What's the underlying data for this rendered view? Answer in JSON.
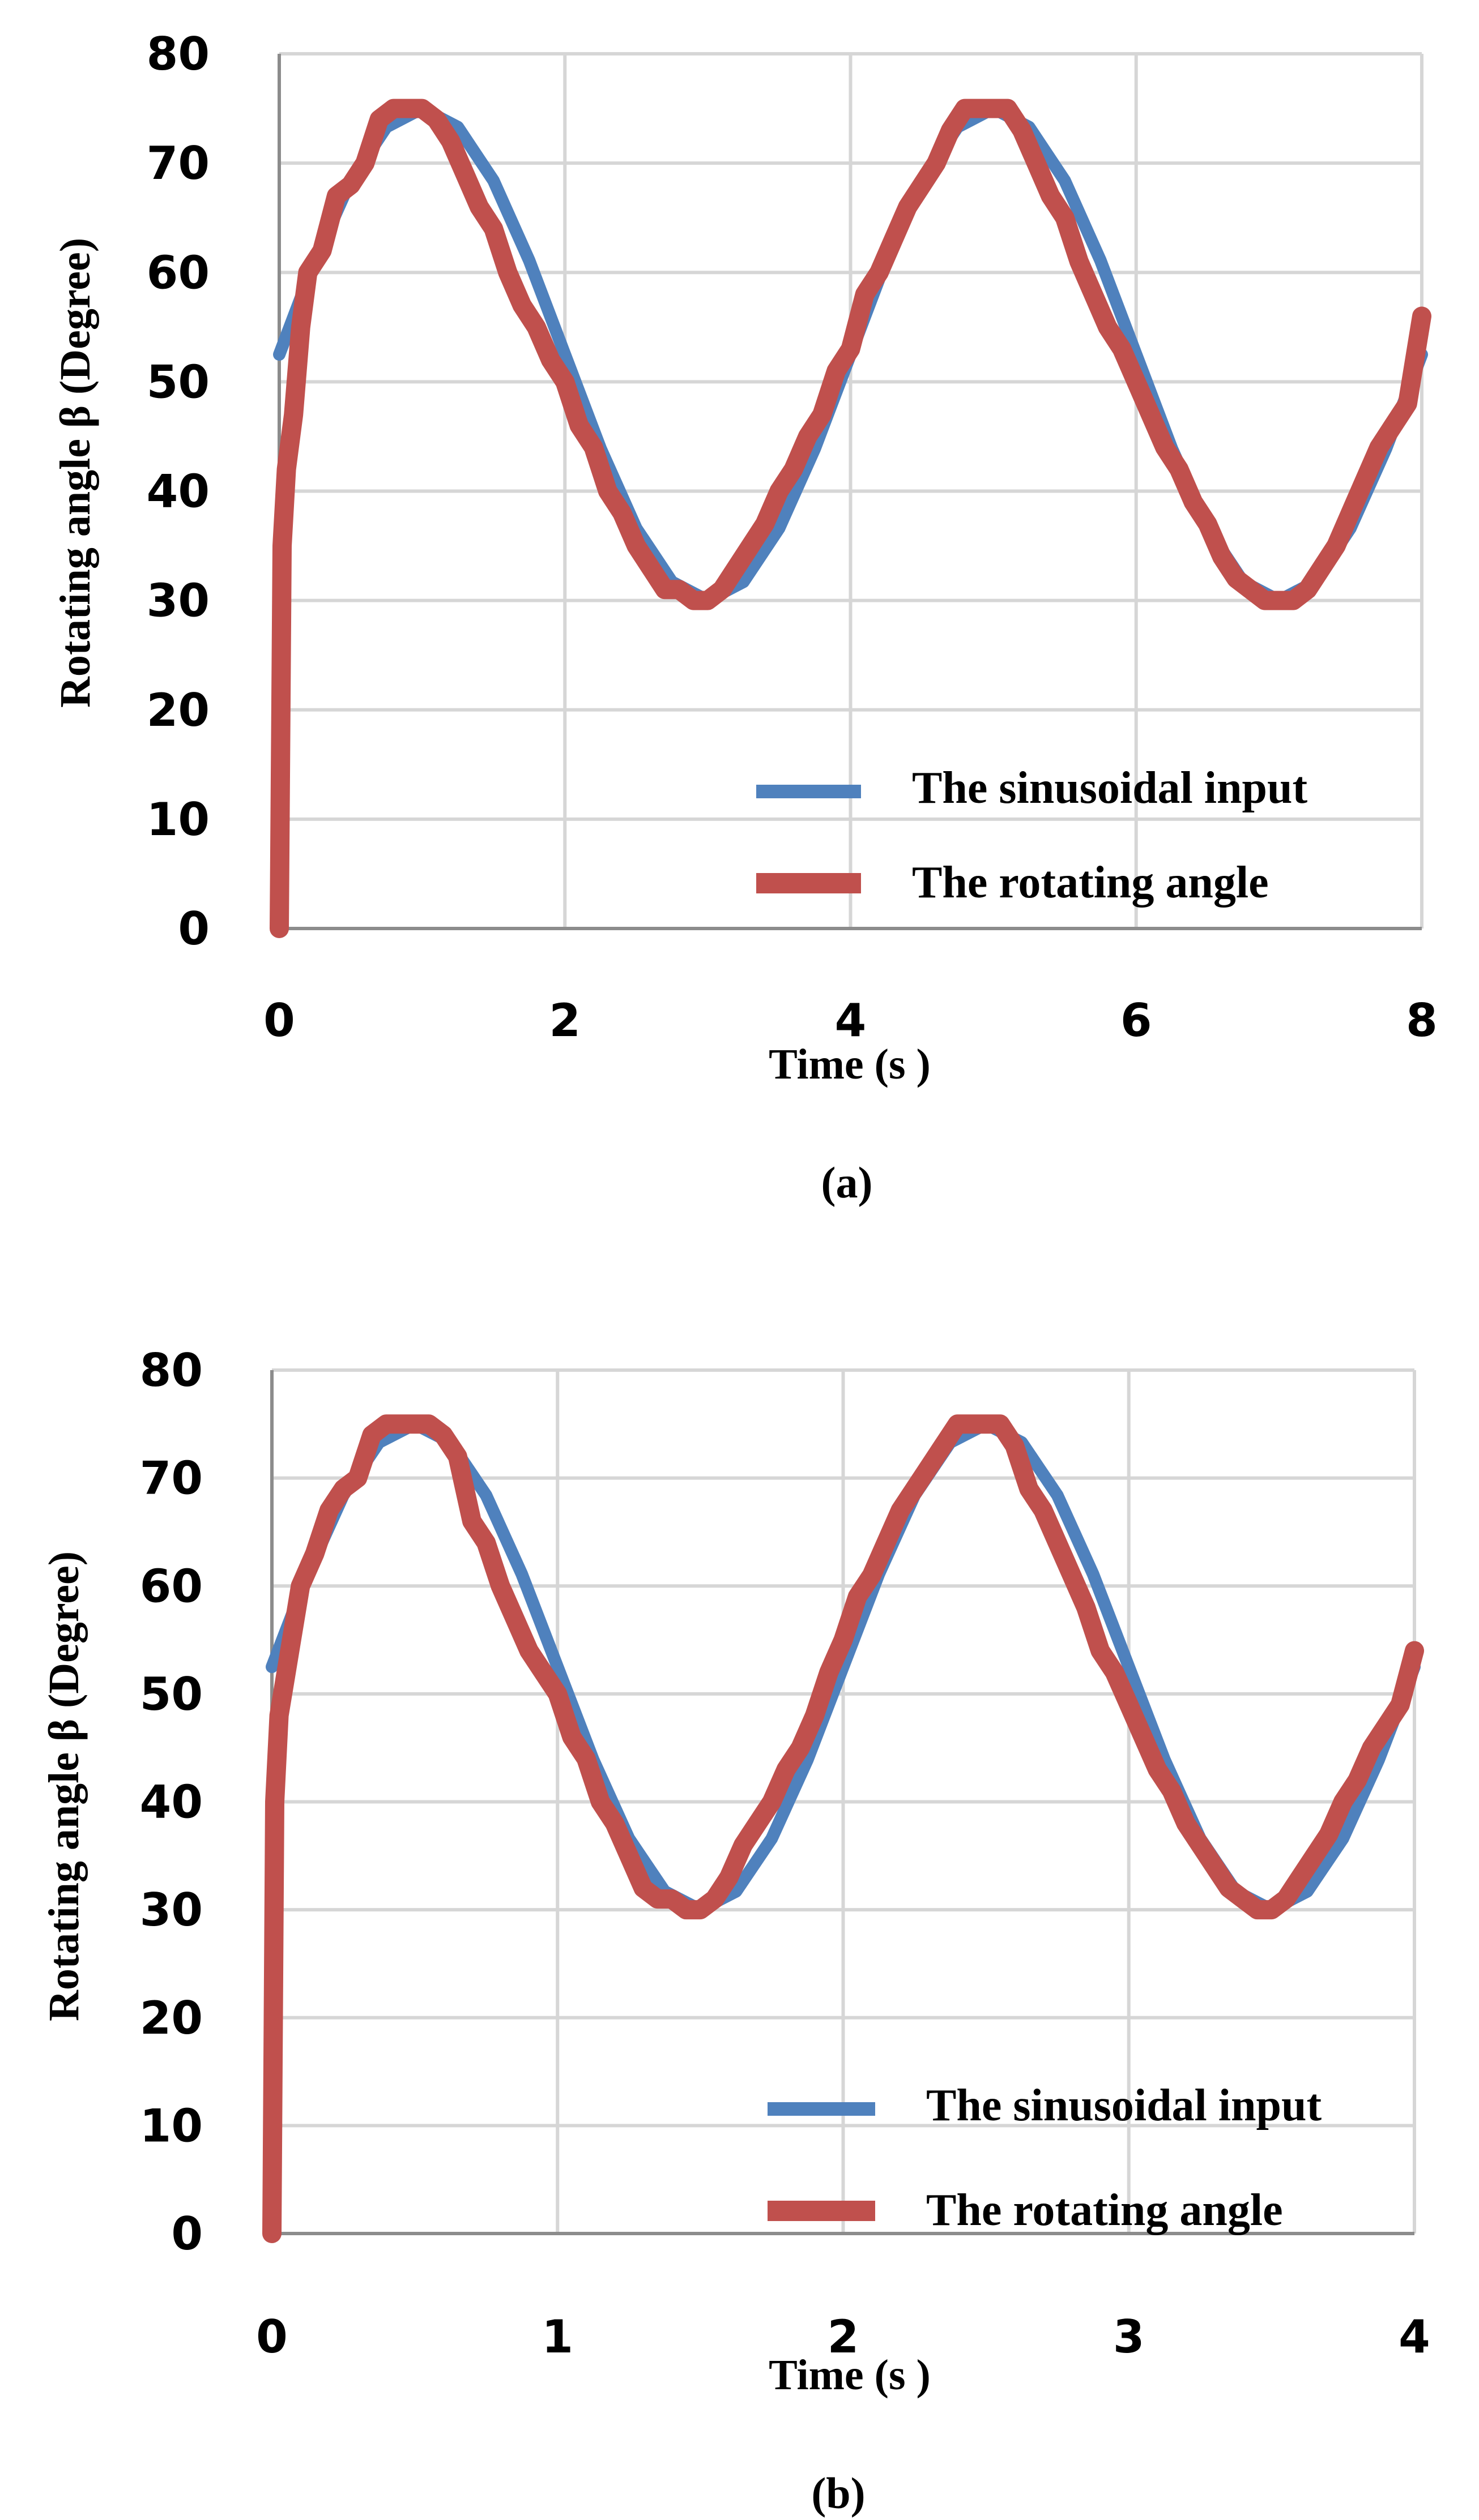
{
  "chart_data": [
    {
      "type": "line",
      "panel_label": "(a)",
      "xlabel": "Time (s )",
      "ylabel": "Rotating angle β (Degree)",
      "xlim": [
        0,
        8
      ],
      "ylim": [
        0,
        80
      ],
      "xticks": [
        0,
        2,
        4,
        6,
        8
      ],
      "yticks": [
        0,
        10,
        20,
        30,
        40,
        50,
        60,
        70,
        80
      ],
      "grid": true,
      "legend_position": "bottom-right",
      "series": [
        {
          "name": "The sinusoidal input",
          "color": "#4f81bd",
          "x": [
            0,
            0.25,
            0.5,
            0.75,
            1,
            1.25,
            1.5,
            1.75,
            2,
            2.25,
            2.5,
            2.75,
            3,
            3.25,
            3.5,
            3.75,
            4,
            4.25,
            4.5,
            4.75,
            5,
            5.25,
            5.5,
            5.75,
            6,
            6.25,
            6.5,
            6.75,
            7,
            7.25,
            7.5,
            7.75,
            8
          ],
          "y": [
            52.5,
            61.1,
            68.4,
            73.3,
            75.0,
            73.3,
            68.4,
            61.1,
            52.5,
            43.9,
            36.6,
            31.7,
            30.0,
            31.7,
            36.6,
            43.9,
            52.5,
            61.1,
            68.4,
            73.3,
            75.0,
            73.3,
            68.4,
            61.1,
            52.5,
            43.9,
            36.6,
            31.7,
            30.0,
            31.7,
            36.6,
            43.9,
            52.5
          ]
        },
        {
          "name": "The rotating angle",
          "color": "#c0504d",
          "x": [
            0,
            0.02,
            0.05,
            0.1,
            0.15,
            0.2,
            0.3,
            0.4,
            0.5,
            0.6,
            0.7,
            0.8,
            0.9,
            1.0,
            1.1,
            1.2,
            1.3,
            1.4,
            1.5,
            1.6,
            1.7,
            1.8,
            1.9,
            2.0,
            2.1,
            2.2,
            2.3,
            2.4,
            2.5,
            2.6,
            2.7,
            2.8,
            2.9,
            3.0,
            3.1,
            3.2,
            3.3,
            3.4,
            3.5,
            3.6,
            3.7,
            3.8,
            3.9,
            4.0,
            4.1,
            4.2,
            4.3,
            4.4,
            4.5,
            4.6,
            4.7,
            4.8,
            4.9,
            5.0,
            5.1,
            5.2,
            5.3,
            5.4,
            5.5,
            5.6,
            5.7,
            5.8,
            5.9,
            6.0,
            6.1,
            6.2,
            6.3,
            6.4,
            6.5,
            6.6,
            6.7,
            6.8,
            6.9,
            7.0,
            7.1,
            7.2,
            7.3,
            7.4,
            7.5,
            7.6,
            7.7,
            7.8,
            7.9,
            8.0
          ],
          "y": [
            0,
            35,
            42,
            47,
            55,
            60,
            62,
            67,
            68,
            70,
            74,
            75,
            75,
            75,
            74,
            72,
            69,
            66,
            64,
            60,
            57,
            55,
            52,
            50,
            46,
            44,
            40,
            38,
            35,
            33,
            31,
            31,
            30,
            30,
            31,
            33,
            35,
            37,
            40,
            42,
            45,
            47,
            51,
            53,
            58,
            60,
            63,
            66,
            68,
            70,
            73,
            75,
            75,
            75,
            75,
            73,
            70,
            67,
            65,
            61,
            58,
            55,
            53,
            50,
            47,
            44,
            42,
            39,
            37,
            34,
            32,
            31,
            30,
            30,
            30,
            31,
            33,
            35,
            38,
            41,
            44,
            46,
            48,
            56
          ]
        }
      ]
    },
    {
      "type": "line",
      "panel_label": "(b)",
      "xlabel": "Time (s )",
      "ylabel": "Rotating angle β (Degree)",
      "xlim": [
        0,
        4
      ],
      "ylim": [
        0,
        80
      ],
      "xticks": [
        0,
        1,
        2,
        3,
        4
      ],
      "yticks": [
        0,
        10,
        20,
        30,
        40,
        50,
        60,
        70,
        80
      ],
      "grid": true,
      "legend_position": "bottom-right",
      "series": [
        {
          "name": "The sinusoidal input",
          "color": "#4f81bd",
          "x": [
            0,
            0.125,
            0.25,
            0.375,
            0.5,
            0.625,
            0.75,
            0.875,
            1,
            1.125,
            1.25,
            1.375,
            1.5,
            1.625,
            1.75,
            1.875,
            2,
            2.125,
            2.25,
            2.375,
            2.5,
            2.625,
            2.75,
            2.875,
            3,
            3.125,
            3.25,
            3.375,
            3.5,
            3.625,
            3.75,
            3.875,
            4
          ],
          "y": [
            52.5,
            61.1,
            68.4,
            73.3,
            75.0,
            73.3,
            68.4,
            61.1,
            52.5,
            43.9,
            36.6,
            31.7,
            30.0,
            31.7,
            36.6,
            43.9,
            52.5,
            61.1,
            68.4,
            73.3,
            75.0,
            73.3,
            68.4,
            61.1,
            52.5,
            43.9,
            36.6,
            31.7,
            30.0,
            31.7,
            36.6,
            43.9,
            52.5
          ]
        },
        {
          "name": "The rotating angle",
          "color": "#c0504d",
          "x": [
            0,
            0.01,
            0.025,
            0.05,
            0.075,
            0.1,
            0.15,
            0.2,
            0.25,
            0.3,
            0.35,
            0.4,
            0.45,
            0.5,
            0.55,
            0.6,
            0.65,
            0.7,
            0.75,
            0.8,
            0.85,
            0.9,
            0.95,
            1.0,
            1.05,
            1.1,
            1.15,
            1.2,
            1.25,
            1.3,
            1.35,
            1.4,
            1.45,
            1.5,
            1.55,
            1.6,
            1.65,
            1.7,
            1.75,
            1.8,
            1.85,
            1.9,
            1.95,
            2.0,
            2.05,
            2.1,
            2.15,
            2.2,
            2.25,
            2.3,
            2.35,
            2.4,
            2.45,
            2.5,
            2.55,
            2.6,
            2.65,
            2.7,
            2.75,
            2.8,
            2.85,
            2.9,
            2.95,
            3.0,
            3.05,
            3.1,
            3.15,
            3.2,
            3.25,
            3.3,
            3.35,
            3.4,
            3.45,
            3.5,
            3.55,
            3.6,
            3.65,
            3.7,
            3.75,
            3.8,
            3.85,
            3.9,
            3.95,
            4.0
          ],
          "y": [
            0,
            40,
            48,
            52,
            56,
            60,
            63,
            67,
            69,
            70,
            74,
            75,
            75,
            75,
            75,
            74,
            72,
            66,
            64,
            60,
            57,
            54,
            52,
            50,
            46,
            44,
            40,
            38,
            35,
            32,
            31,
            31,
            30,
            30,
            31,
            33,
            36,
            38,
            40,
            43,
            45,
            48,
            52,
            55,
            59,
            61,
            64,
            67,
            69,
            71,
            73,
            75,
            75,
            75,
            75,
            73,
            69,
            67,
            64,
            61,
            58,
            54,
            52,
            49,
            46,
            43,
            41,
            38,
            36,
            34,
            32,
            31,
            30,
            30,
            31,
            33,
            35,
            37,
            40,
            42,
            45,
            47,
            49,
            54
          ]
        }
      ]
    }
  ]
}
